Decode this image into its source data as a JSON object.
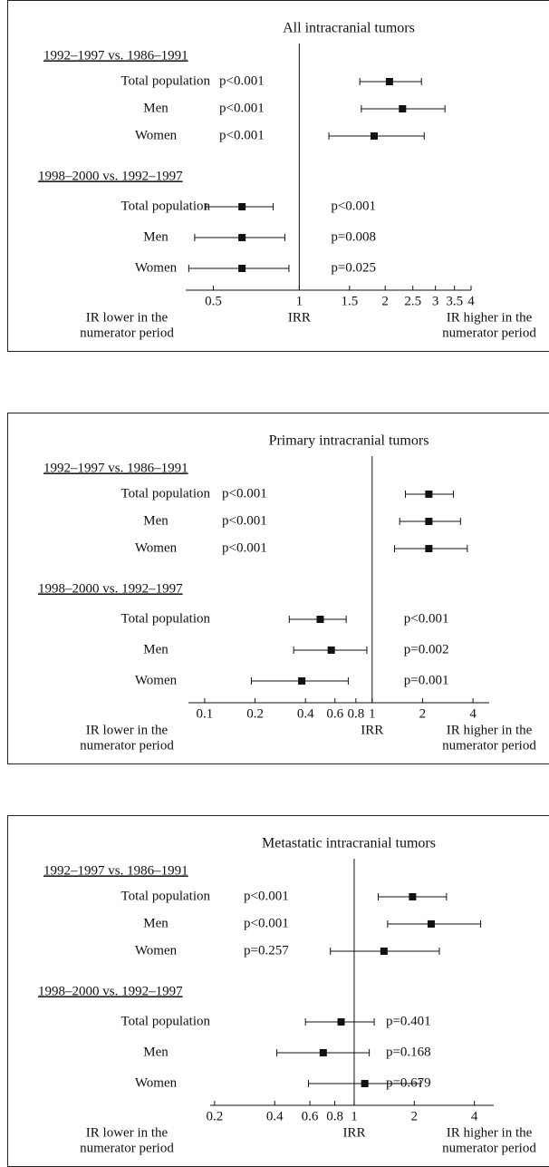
{
  "chart_data": [
    {
      "type": "forest",
      "title": "All intracranial tumors",
      "x_label": "IRR",
      "left_note": [
        "IR lower in the",
        "numerator period"
      ],
      "right_note": [
        "IR higher in the",
        "numerator period"
      ],
      "log_x": true,
      "xlim": [
        0.4,
        4
      ],
      "xticks": [
        0.5,
        1,
        1.5,
        2,
        2.5,
        3,
        3.5,
        4
      ],
      "reference": 1,
      "groups": [
        {
          "name": "1992–1997 vs. 1986–1991",
          "rows": [
            {
              "label": "Total population",
              "p": "p<0.001",
              "estimate": 2.07,
              "lower": 1.63,
              "upper": 2.68
            },
            {
              "label": "Men",
              "p": "p<0.001",
              "estimate": 2.3,
              "lower": 1.65,
              "upper": 3.24
            },
            {
              "label": "Women",
              "p": "p<0.001",
              "estimate": 1.83,
              "lower": 1.27,
              "upper": 2.74
            }
          ]
        },
        {
          "name": "1998–2000 vs. 1992–1997",
          "rows": [
            {
              "label": "Total population",
              "p": "p<0.001",
              "estimate": 0.63,
              "lower": 0.47,
              "upper": 0.81
            },
            {
              "label": "Men",
              "p": "p=0.008",
              "estimate": 0.63,
              "lower": 0.43,
              "upper": 0.89
            },
            {
              "label": "Women",
              "p": "p=0.025",
              "estimate": 0.63,
              "lower": 0.41,
              "upper": 0.92
            }
          ]
        }
      ]
    },
    {
      "type": "forest",
      "title": "Primary intracranial tumors",
      "x_label": "IRR",
      "left_note": [
        "IR lower in the",
        "numerator period"
      ],
      "right_note": [
        "IR higher in the",
        "numerator period"
      ],
      "log_x": true,
      "xlim": [
        0.08,
        5
      ],
      "xticks": [
        0.1,
        0.2,
        0.4,
        0.6,
        0.8,
        1,
        2,
        4
      ],
      "reference": 1,
      "groups": [
        {
          "name": "1992–1997 vs. 1986–1991",
          "rows": [
            {
              "label": "Total population",
              "p": "p<0.001",
              "estimate": 2.18,
              "lower": 1.58,
              "upper": 3.06
            },
            {
              "label": "Men",
              "p": "p<0.001",
              "estimate": 2.18,
              "lower": 1.46,
              "upper": 3.37
            },
            {
              "label": "Women",
              "p": "p<0.001",
              "estimate": 2.18,
              "lower": 1.36,
              "upper": 3.7
            }
          ]
        },
        {
          "name": "1998–2000 vs. 1992–1997",
          "rows": [
            {
              "label": "Total population",
              "p": "p<0.001",
              "estimate": 0.49,
              "lower": 0.32,
              "upper": 0.7
            },
            {
              "label": "Men",
              "p": "p=0.002",
              "estimate": 0.57,
              "lower": 0.34,
              "upper": 0.93
            },
            {
              "label": "Women",
              "p": "p=0.001",
              "estimate": 0.38,
              "lower": 0.19,
              "upper": 0.72
            }
          ]
        }
      ]
    },
    {
      "type": "forest",
      "title": "Metastatic intracranial tumors",
      "x_label": "IRR",
      "left_note": [
        "IR lower in the",
        "numerator period"
      ],
      "right_note": [
        "IR higher in the",
        "numerator period"
      ],
      "log_x": true,
      "xlim": [
        0.19,
        5
      ],
      "xticks": [
        0.2,
        0.4,
        0.6,
        0.8,
        1,
        2,
        4
      ],
      "reference": 1,
      "groups": [
        {
          "name": "1992–1997 vs. 1986–1991",
          "rows": [
            {
              "label": "Total population",
              "p": "p<0.001",
              "estimate": 1.96,
              "lower": 1.32,
              "upper": 2.9
            },
            {
              "label": "Men",
              "p": "p<0.001",
              "estimate": 2.43,
              "lower": 1.47,
              "upper": 4.3
            },
            {
              "label": "Women",
              "p": "p=0.257",
              "estimate": 1.41,
              "lower": 0.76,
              "upper": 2.67
            }
          ]
        },
        {
          "name": "1998–2000 vs. 1992–1997",
          "rows": [
            {
              "label": "Total population",
              "p": "p=0.401",
              "estimate": 0.86,
              "lower": 0.57,
              "upper": 1.26
            },
            {
              "label": "Men",
              "p": "p=0.168",
              "estimate": 0.7,
              "lower": 0.41,
              "upper": 1.19
            },
            {
              "label": "Women",
              "p": "p=0.679",
              "estimate": 1.13,
              "lower": 0.59,
              "upper": 2.15
            }
          ]
        }
      ]
    }
  ]
}
